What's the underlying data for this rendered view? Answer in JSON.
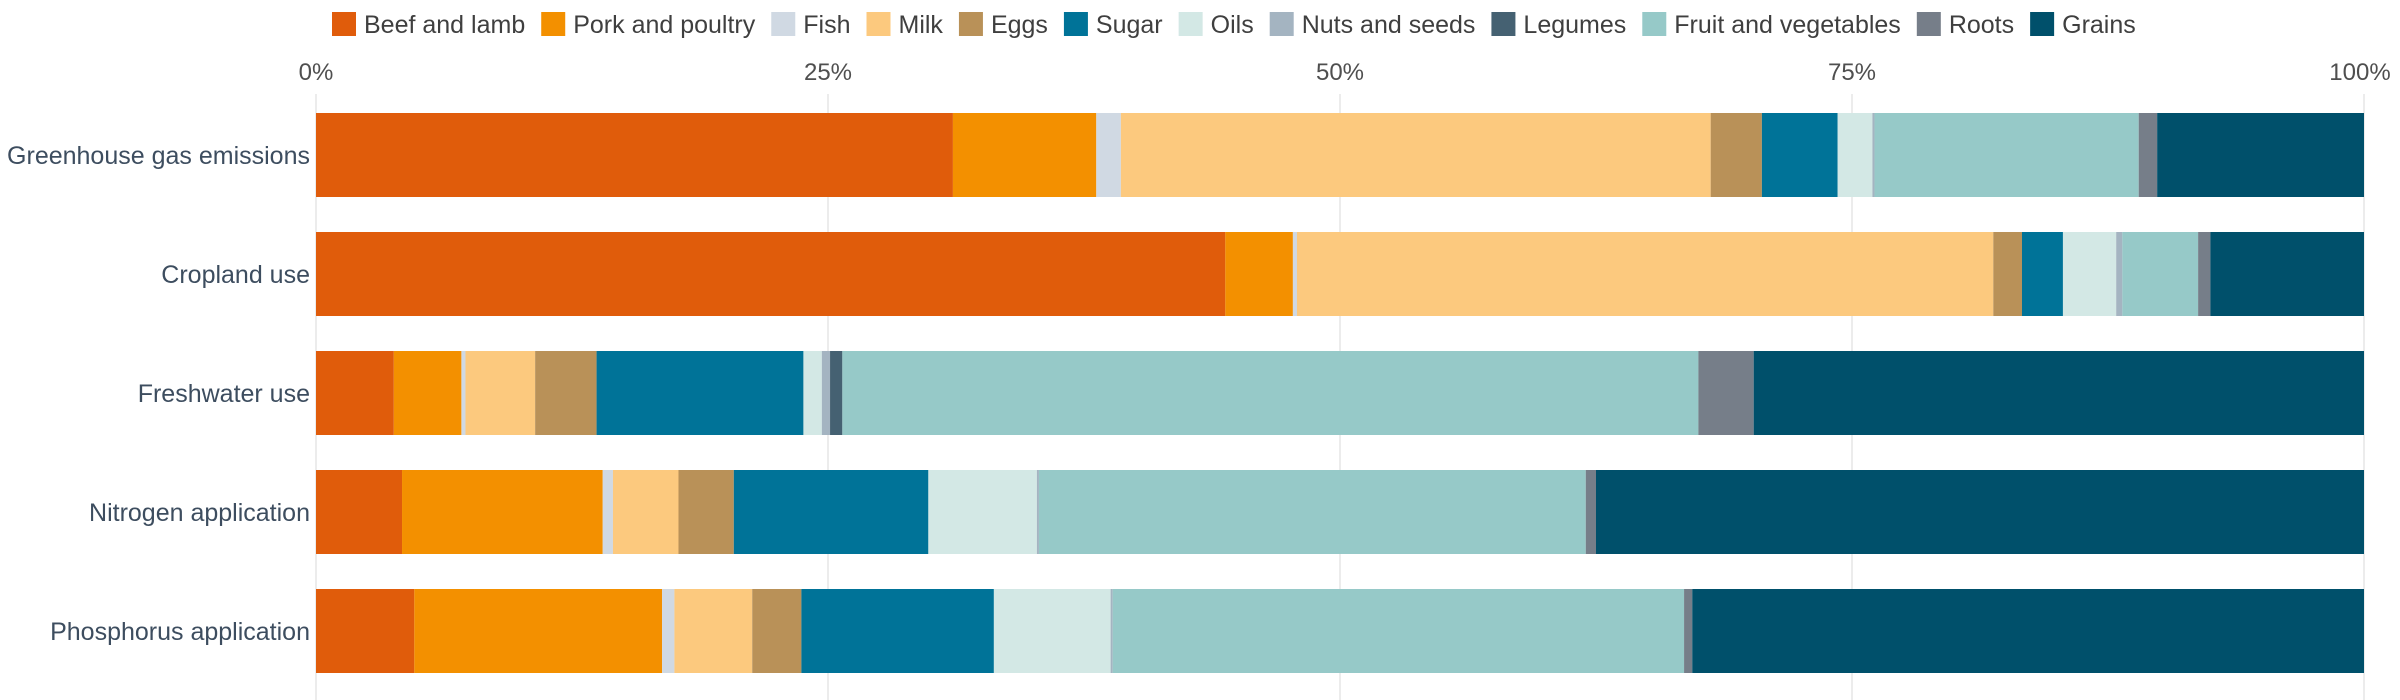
{
  "chart_data": {
    "type": "bar",
    "orientation": "horizontal",
    "stacked": "percent",
    "xlim": [
      0,
      100
    ],
    "ticks": [
      "0%",
      "25%",
      "50%",
      "75%",
      "100%"
    ],
    "tick_values": [
      0,
      25,
      50,
      75,
      100
    ],
    "grid": true,
    "legend_position": "top",
    "categories": [
      "Greenhouse gas emissions",
      "Cropland use",
      "Freshwater use",
      "Nitrogen application",
      "Phosphorus application"
    ],
    "series": [
      {
        "name": "Beef and lamb",
        "color": "#e05c0b",
        "values": [
          31.1,
          44.4,
          3.8,
          4.2,
          4.8
        ]
      },
      {
        "name": "Pork and poultry",
        "color": "#f39000",
        "values": [
          7.0,
          3.3,
          3.3,
          9.8,
          12.1
        ]
      },
      {
        "name": "Fish",
        "color": "#d0d9e3",
        "values": [
          1.2,
          0.2,
          0.2,
          0.5,
          0.6
        ]
      },
      {
        "name": "Milk",
        "color": "#fcc97e",
        "values": [
          28.8,
          34.0,
          3.4,
          3.2,
          3.8
        ]
      },
      {
        "name": "Eggs",
        "color": "#b99158",
        "values": [
          2.5,
          1.4,
          3.0,
          2.7,
          2.4
        ]
      },
      {
        "name": "Sugar",
        "color": "#007398",
        "values": [
          3.7,
          2.0,
          10.1,
          9.5,
          9.4
        ]
      },
      {
        "name": "Oils",
        "color": "#d3e8e5",
        "values": [
          1.7,
          2.6,
          0.9,
          5.3,
          5.7
        ]
      },
      {
        "name": "Nuts and seeds",
        "color": "#a4b4c1",
        "values": [
          0.1,
          0.3,
          0.4,
          0.1,
          0.1
        ]
      },
      {
        "name": "Legumes",
        "color": "#456172",
        "values": [
          0.0,
          0.0,
          0.6,
          0.0,
          0.0
        ]
      },
      {
        "name": "Fruit and vegetables",
        "color": "#96c9c8",
        "values": [
          12.9,
          3.7,
          41.8,
          26.7,
          27.9
        ]
      },
      {
        "name": "Roots",
        "color": "#767e89",
        "values": [
          0.9,
          0.6,
          2.7,
          0.5,
          0.4
        ]
      },
      {
        "name": "Grains",
        "color": "#00506b",
        "values": [
          10.1,
          7.5,
          29.8,
          37.5,
          32.8
        ]
      }
    ]
  }
}
